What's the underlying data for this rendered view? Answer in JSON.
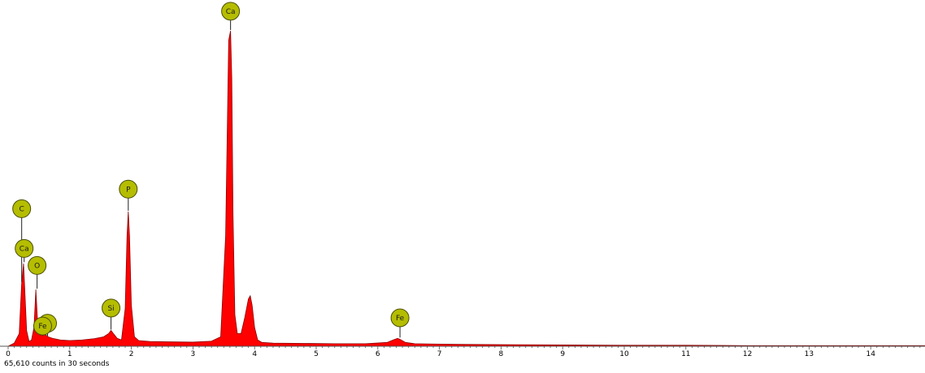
{
  "chart_data": {
    "type": "area",
    "title": "",
    "xlabel": "",
    "ylabel": "",
    "xlim": [
      0,
      15
    ],
    "ylim": [
      0,
      1.0
    ],
    "x_ticks": [
      "0",
      "1",
      "2",
      "3",
      "4",
      "5",
      "6",
      "7",
      "8",
      "9",
      "10",
      "11",
      "12",
      "13",
      "14"
    ],
    "grid": false,
    "legend": "none",
    "fill_color": "#ff0000",
    "outline_color": "#8b0000",
    "marker_color": "#b5bd00",
    "series": [
      {
        "x": [
          0.0,
          0.1,
          0.18,
          0.22,
          0.25,
          0.27,
          0.3,
          0.34,
          0.38,
          0.42,
          0.45,
          0.48,
          0.52,
          0.58,
          0.65,
          0.72,
          0.85,
          1.0,
          1.2,
          1.4,
          1.55,
          1.63,
          1.67,
          1.71,
          1.77,
          1.84,
          1.9,
          1.93,
          1.95,
          1.97,
          2.0,
          2.05,
          2.12,
          2.3,
          2.6,
          3.0,
          3.3,
          3.45,
          3.53,
          3.58,
          3.61,
          3.63,
          3.65,
          3.68,
          3.72,
          3.78,
          3.84,
          3.9,
          3.93,
          3.96,
          4.0,
          4.05,
          4.12,
          4.3,
          4.8,
          5.3,
          5.8,
          6.15,
          6.25,
          6.32,
          6.36,
          6.45,
          6.6,
          6.9,
          7.3,
          8.0,
          9.0,
          10.0,
          11.0,
          12.0,
          13.0,
          14.0,
          15.0
        ],
        "y": [
          0.0,
          0.01,
          0.04,
          0.2,
          0.262,
          0.18,
          0.05,
          0.015,
          0.02,
          0.06,
          0.18,
          0.07,
          0.035,
          0.04,
          0.03,
          0.025,
          0.02,
          0.018,
          0.02,
          0.024,
          0.03,
          0.04,
          0.05,
          0.04,
          0.025,
          0.02,
          0.12,
          0.35,
          0.427,
          0.35,
          0.13,
          0.03,
          0.018,
          0.015,
          0.014,
          0.013,
          0.016,
          0.03,
          0.35,
          0.97,
          1.0,
          0.85,
          0.42,
          0.1,
          0.04,
          0.04,
          0.09,
          0.15,
          0.16,
          0.13,
          0.06,
          0.02,
          0.012,
          0.01,
          0.009,
          0.008,
          0.008,
          0.012,
          0.02,
          0.025,
          0.022,
          0.012,
          0.008,
          0.007,
          0.006,
          0.005,
          0.004,
          0.003,
          0.003,
          0.002,
          0.002,
          0.002,
          0.002
        ]
      }
    ],
    "peak_labels": [
      {
        "element": "C",
        "x": 0.22,
        "y": 0.201,
        "label_y": 0.436
      },
      {
        "element": "Ca",
        "x": 0.26,
        "y": 0.264,
        "label_y": 0.31
      },
      {
        "element": "O",
        "x": 0.47,
        "y": 0.18,
        "label_y": 0.256
      },
      {
        "element": "",
        "x": 0.64,
        "y": 0.03,
        "label_y": 0.073
      },
      {
        "element": "Fe",
        "x": 0.56,
        "y": 0.03,
        "label_y": 0.064
      },
      {
        "element": "Si",
        "x": 1.67,
        "y": 0.05,
        "label_y": 0.121
      },
      {
        "element": "P",
        "x": 1.95,
        "y": 0.427,
        "label_y": 0.498
      },
      {
        "element": "Ca",
        "x": 3.61,
        "y": 1.0,
        "label_y": 1.062
      },
      {
        "element": "Fe",
        "x": 6.36,
        "y": 0.025,
        "label_y": 0.09
      }
    ]
  },
  "footer": {
    "text": "65,610 counts in 30 seconds"
  }
}
